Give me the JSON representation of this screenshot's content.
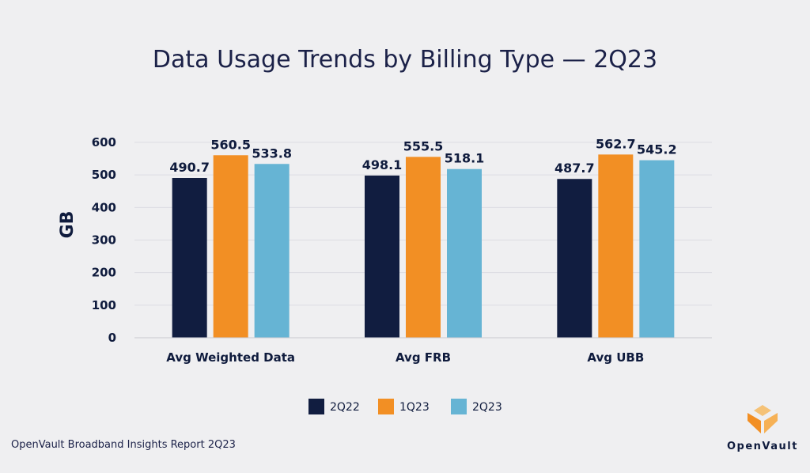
{
  "chart_data": {
    "type": "bar",
    "title": "Data Usage Trends by Billing Type — 2Q23",
    "ylabel": "GB",
    "xlabel": "",
    "ylim": [
      0,
      600
    ],
    "yticks": [
      0,
      100,
      200,
      300,
      400,
      500,
      600
    ],
    "grid": true,
    "legend_position": "bottom",
    "categories": [
      "Avg Weighted Data",
      "Avg FRB",
      "Avg UBB"
    ],
    "series": [
      {
        "name": "2Q22",
        "color": "#111d40",
        "values": [
          490.7,
          498.1,
          487.7
        ]
      },
      {
        "name": "1Q23",
        "color": "#f28f24",
        "values": [
          560.5,
          555.5,
          562.7
        ]
      },
      {
        "name": "2Q23",
        "color": "#66b4d4",
        "values": [
          533.8,
          518.1,
          545.2
        ]
      }
    ]
  },
  "footer": {
    "source": "OpenVault Broadband Insights Report 2Q23"
  },
  "brand": {
    "name": "OpenVault",
    "logo_colors": [
      "#f28f24",
      "#f6b156",
      "#f5c277"
    ]
  }
}
